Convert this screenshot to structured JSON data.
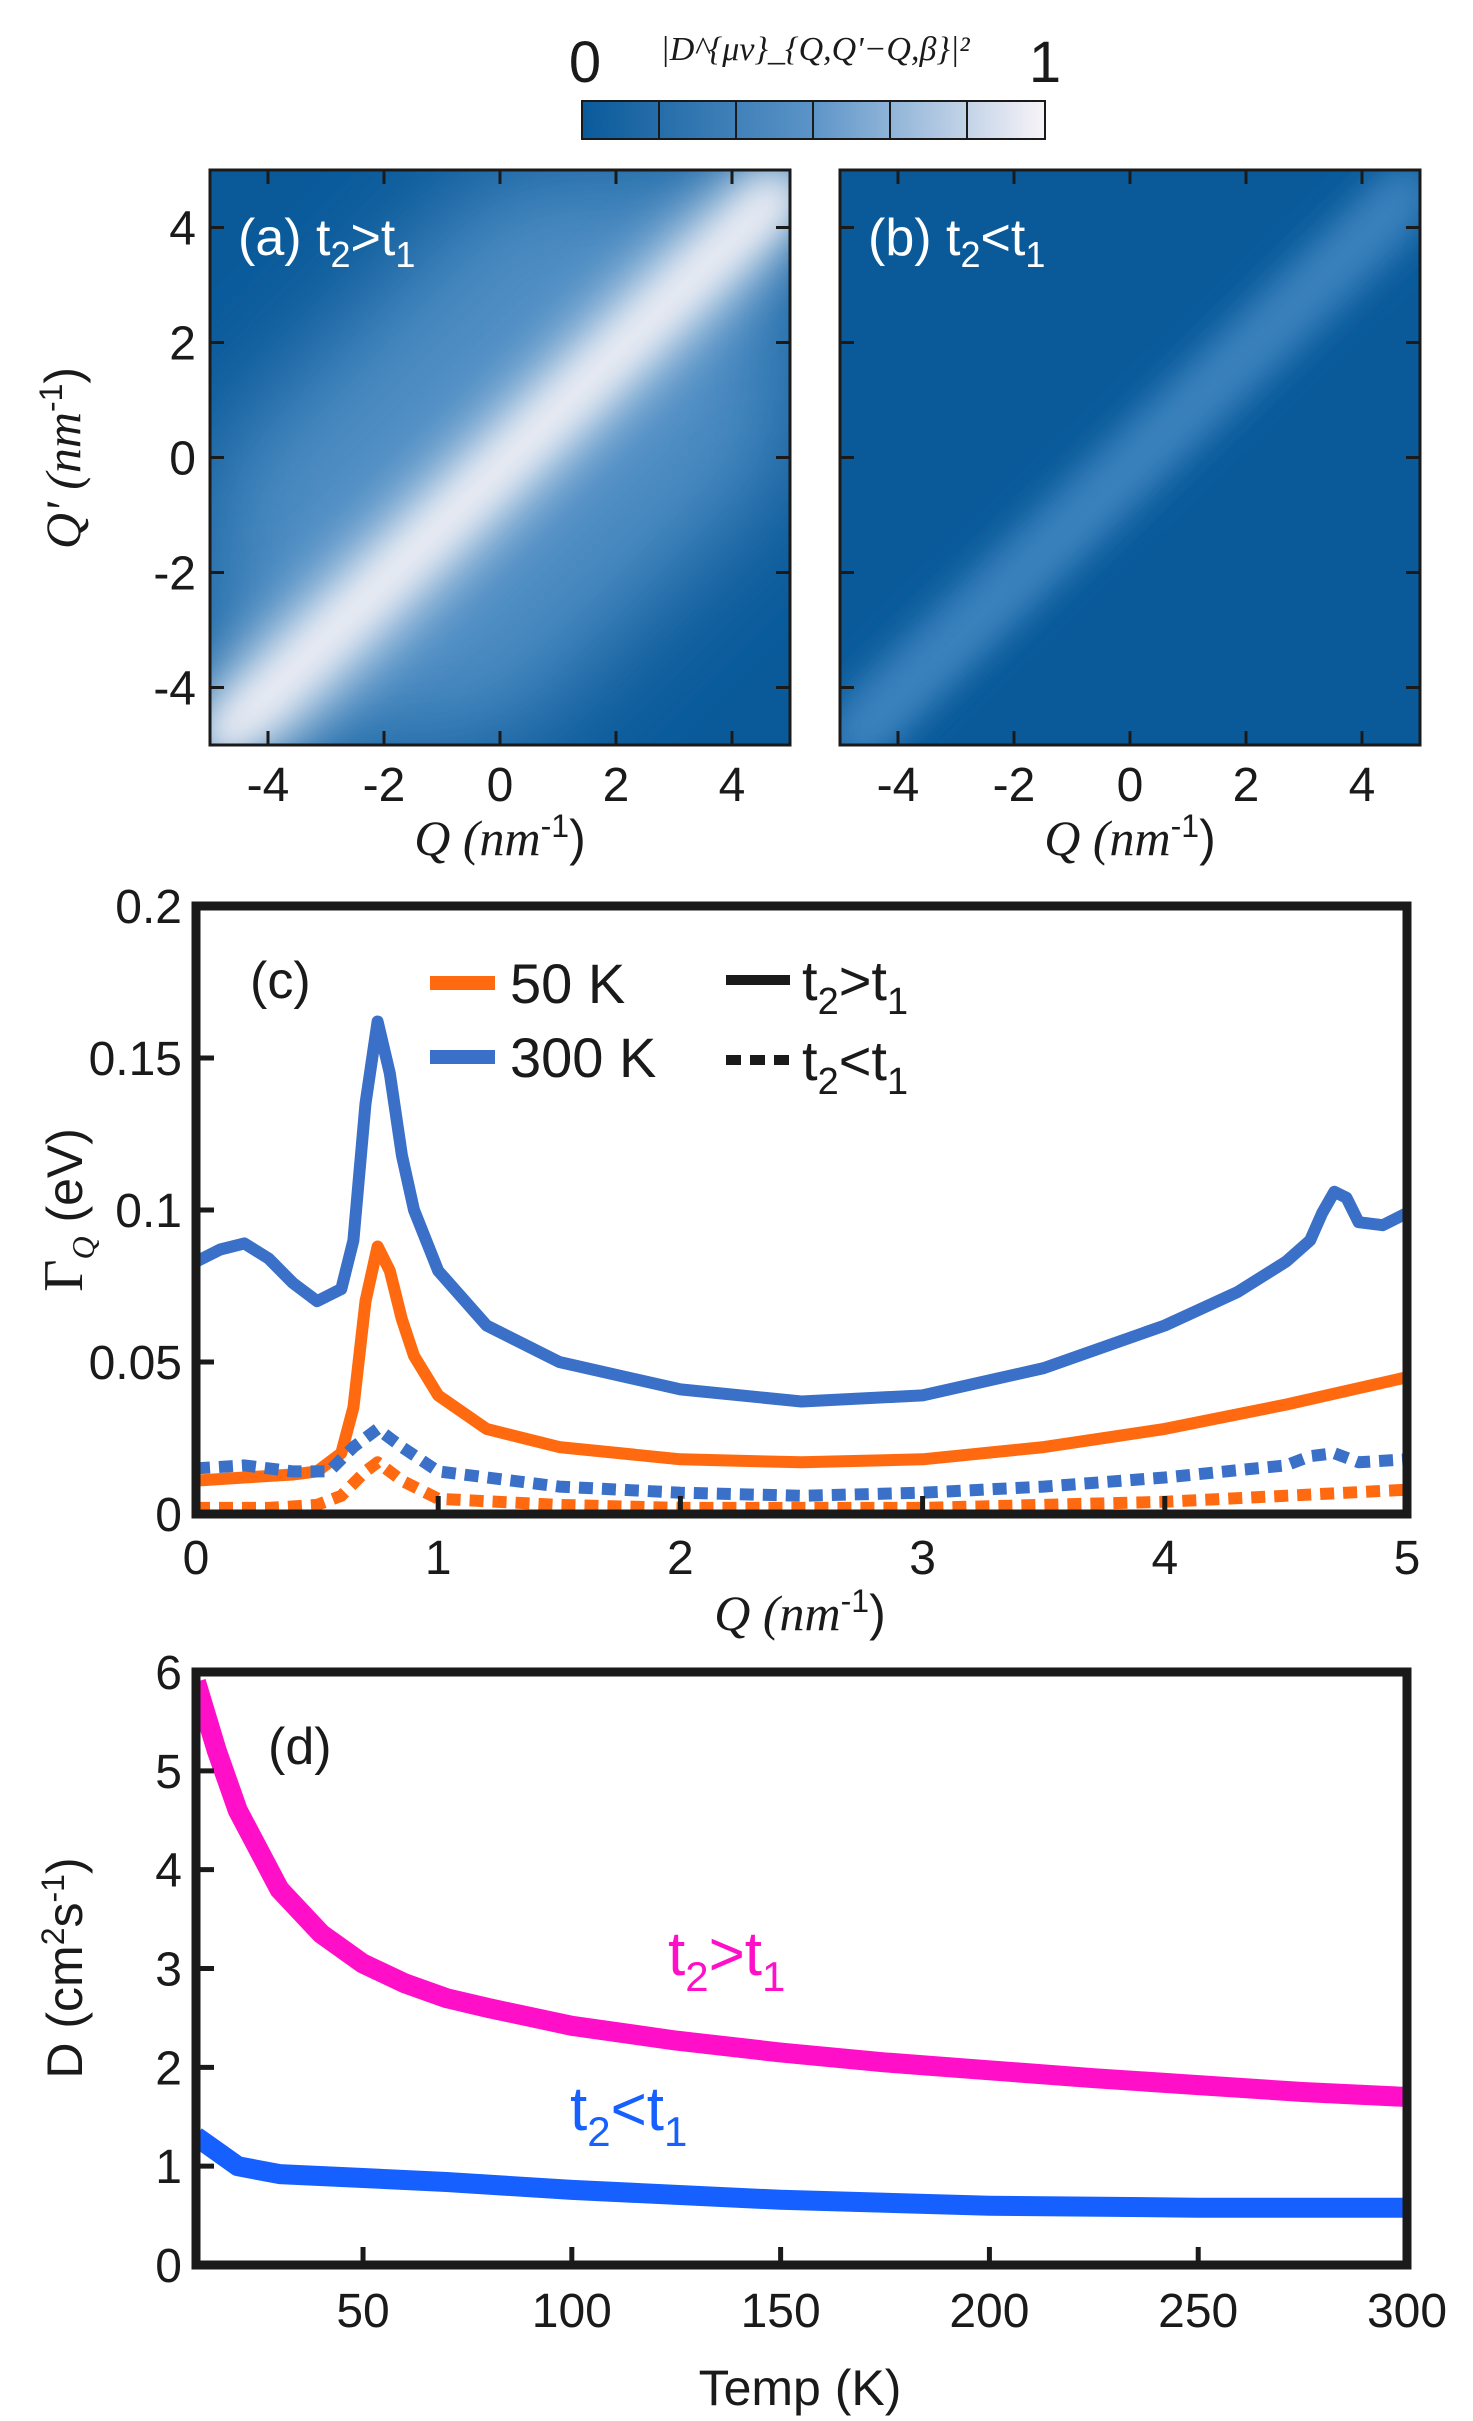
{
  "colors": {
    "heatmap_low": "#0a5a9a",
    "heatmap_high": "#f8f4f8",
    "orange_50K": "#ff6a10",
    "blue_300K": "#3a70c8",
    "magenta": "#ff10c8",
    "blue_d": "#1560ff",
    "axis": "#1a1a1a"
  },
  "chart_data": [
    {
      "type": "heatmap",
      "id": "colorbar",
      "min_label": "0",
      "max_label": "1",
      "quantity_label": "|D^{μν}_{Q,Q'−Q,β}|²",
      "range": [
        0,
        1
      ]
    },
    {
      "type": "heatmap",
      "id": "a",
      "panel_label": "(a) t",
      "panel_sub": "2",
      "panel_mid": ">t",
      "panel_sub2": "1",
      "xlabel": "Q (nm",
      "xlabel_sup": "-1",
      "ylabel": "Q' (nm",
      "ylabel_sup": "-1",
      "xlim": [
        -5,
        5
      ],
      "ylim": [
        -5,
        5
      ],
      "xticks": [
        "-4",
        "-2",
        "0",
        "2",
        "4"
      ],
      "yticks": [
        "-4",
        "-2",
        "0",
        "2",
        "4"
      ],
      "description_values": {
        "diagonal_peak": 1.0,
        "off_diagonal_min": 0.02,
        "ridge_width_nm-1": 1.3
      }
    },
    {
      "type": "heatmap",
      "id": "b",
      "panel_label": "(b) t",
      "panel_sub": "2",
      "panel_mid": "<t",
      "panel_sub2": "1",
      "xlabel": "Q (nm",
      "xlabel_sup": "-1",
      "xlim": [
        -5,
        5
      ],
      "ylim": [
        -5,
        5
      ],
      "xticks": [
        "-4",
        "-2",
        "0",
        "2",
        "4"
      ],
      "yticks": [
        "-4",
        "-2",
        "0",
        "2",
        "4"
      ],
      "description_values": {
        "diagonal_peak": 0.12,
        "off_diagonal_min": 0.0
      }
    },
    {
      "type": "line",
      "id": "c",
      "panel_label": "(c)",
      "xlabel": "Q (nm",
      "xlabel_sup": "-1",
      "ylabel": "Γ",
      "ylabel_sub": "Q",
      "ylabel_unit": " (eV)",
      "xlim": [
        0,
        5
      ],
      "ylim": [
        0,
        0.2
      ],
      "xticks": [
        "0",
        "1",
        "2",
        "3",
        "4",
        "5"
      ],
      "yticks": [
        "0",
        "0.05",
        "0.1",
        "0.15",
        "0.2"
      ],
      "legend": {
        "temp_items": [
          {
            "label": "50 K",
            "color": "#ff6a10"
          },
          {
            "label": "300 K",
            "color": "#3a70c8"
          }
        ],
        "style_items": [
          {
            "label": "t",
            "sub": "2",
            "mid": ">t",
            "sub2": "1",
            "style": "solid"
          },
          {
            "label": "t",
            "sub": "2",
            "mid": "<t",
            "sub2": "1",
            "style": "dashed"
          }
        ]
      },
      "series": [
        {
          "temp": "300 K",
          "style": "solid",
          "color": "#3a70c8",
          "x": [
            0,
            0.1,
            0.2,
            0.3,
            0.4,
            0.5,
            0.6,
            0.65,
            0.7,
            0.75,
            0.8,
            0.85,
            0.9,
            1.0,
            1.2,
            1.5,
            2.0,
            2.5,
            3.0,
            3.5,
            4.0,
            4.3,
            4.5,
            4.6,
            4.65,
            4.7,
            4.75,
            4.8,
            4.9,
            5.0
          ],
          "y": [
            0.083,
            0.087,
            0.089,
            0.084,
            0.076,
            0.07,
            0.074,
            0.09,
            0.135,
            0.162,
            0.145,
            0.118,
            0.1,
            0.08,
            0.062,
            0.05,
            0.041,
            0.037,
            0.039,
            0.048,
            0.062,
            0.073,
            0.083,
            0.09,
            0.099,
            0.106,
            0.104,
            0.096,
            0.095,
            0.099
          ]
        },
        {
          "temp": "50 K",
          "style": "solid",
          "color": "#ff6a10",
          "x": [
            0,
            0.2,
            0.4,
            0.5,
            0.6,
            0.65,
            0.7,
            0.75,
            0.8,
            0.85,
            0.9,
            1.0,
            1.2,
            1.5,
            2.0,
            2.5,
            3.0,
            3.5,
            4.0,
            4.5,
            5.0
          ],
          "y": [
            0.011,
            0.012,
            0.013,
            0.014,
            0.02,
            0.035,
            0.07,
            0.088,
            0.08,
            0.064,
            0.052,
            0.039,
            0.028,
            0.022,
            0.018,
            0.017,
            0.018,
            0.022,
            0.028,
            0.036,
            0.045
          ]
        },
        {
          "temp": "300 K",
          "style": "dashed",
          "color": "#3a70c8",
          "x": [
            0,
            0.2,
            0.4,
            0.55,
            0.65,
            0.75,
            0.85,
            1.0,
            1.5,
            2.0,
            2.5,
            3.0,
            3.5,
            4.0,
            4.5,
            4.6,
            4.7,
            4.8,
            5.0
          ],
          "y": [
            0.015,
            0.016,
            0.014,
            0.014,
            0.022,
            0.028,
            0.022,
            0.014,
            0.009,
            0.007,
            0.006,
            0.007,
            0.009,
            0.012,
            0.016,
            0.019,
            0.02,
            0.017,
            0.018
          ]
        },
        {
          "temp": "50 K",
          "style": "dashed",
          "color": "#ff6a10",
          "x": [
            0,
            0.3,
            0.5,
            0.6,
            0.7,
            0.75,
            0.85,
            1.0,
            1.5,
            2.0,
            3.0,
            4.0,
            5.0
          ],
          "y": [
            0.002,
            0.002,
            0.003,
            0.006,
            0.014,
            0.017,
            0.011,
            0.005,
            0.003,
            0.002,
            0.002,
            0.004,
            0.008
          ]
        }
      ]
    },
    {
      "type": "line",
      "id": "d",
      "panel_label": "(d)",
      "xlabel": "Temp (K)",
      "ylabel": "D (cm",
      "ylabel_sup": "2",
      "ylabel_mid": "s",
      "ylabel_sup2": "-1",
      "ylabel_end": ")",
      "xlim": [
        10,
        300
      ],
      "ylim": [
        0,
        6
      ],
      "xticks": [
        "50",
        "100",
        "150",
        "200",
        "250",
        "300"
      ],
      "yticks": [
        "0",
        "1",
        "2",
        "3",
        "4",
        "5",
        "6"
      ],
      "series": [
        {
          "name_t": "t",
          "name_sub": "2",
          "name_mid": ">t",
          "name_sub2": "1",
          "color": "#ff10c8",
          "x": [
            10,
            15,
            20,
            30,
            40,
            50,
            60,
            70,
            80,
            100,
            125,
            150,
            175,
            200,
            225,
            250,
            275,
            300
          ],
          "y": [
            5.9,
            5.2,
            4.6,
            3.8,
            3.35,
            3.05,
            2.85,
            2.7,
            2.6,
            2.42,
            2.27,
            2.15,
            2.05,
            1.97,
            1.89,
            1.82,
            1.75,
            1.7
          ]
        },
        {
          "name_t": "t",
          "name_sub": "2",
          "name_mid": "<t",
          "name_sub2": "1",
          "color": "#1560ff",
          "x": [
            10,
            15,
            20,
            30,
            50,
            70,
            100,
            150,
            200,
            250,
            300
          ],
          "y": [
            1.3,
            1.15,
            1.0,
            0.92,
            0.88,
            0.84,
            0.76,
            0.66,
            0.6,
            0.58,
            0.58
          ]
        }
      ]
    }
  ]
}
